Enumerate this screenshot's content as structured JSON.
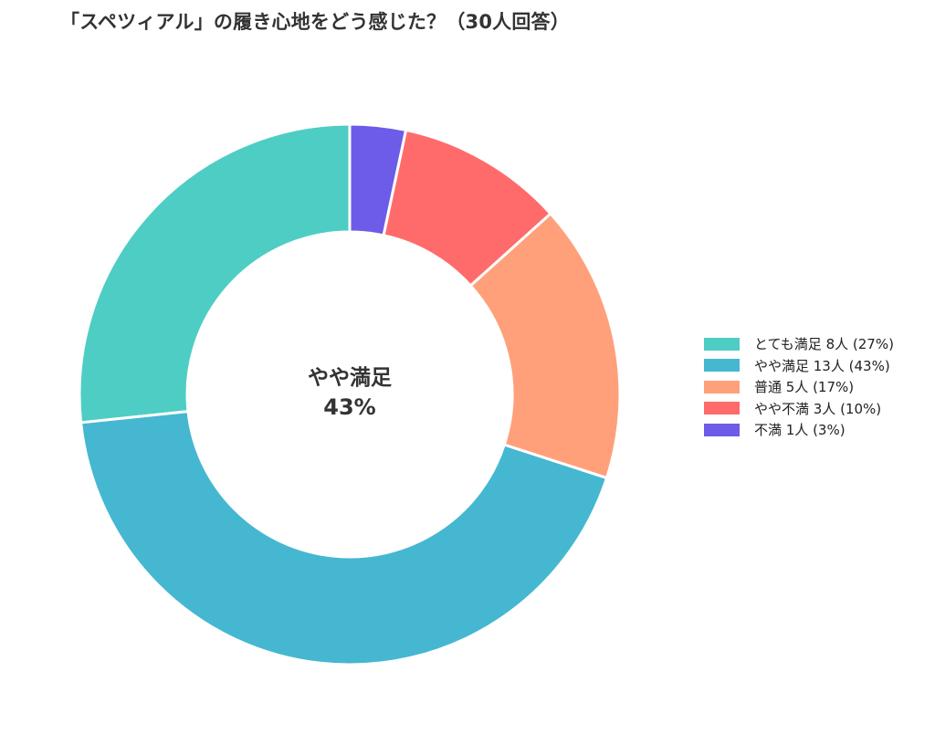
{
  "title": "「スペツィアル」の履き心地をどう感じた？（30人回答）",
  "center": {
    "label": "やや満足",
    "value": "43%"
  },
  "legend": [
    {
      "label": "とても満足 8人 (27%)",
      "color": "#4ECDC4"
    },
    {
      "label": "やや満足 13人 (43%)",
      "color": "#45B7D1"
    },
    {
      "label": "普通 5人 (17%)",
      "color": "#FFA07A"
    },
    {
      "label": "やや不満 3人 (10%)",
      "color": "#FF6B6B"
    },
    {
      "label": "不満 1人 (3%)",
      "color": "#6C5CE7"
    }
  ],
  "chart_data": {
    "type": "pie",
    "subtype": "donut",
    "title": "「スペツィアル」の履き心地をどう感じた？（30人回答）",
    "total_respondents": 30,
    "categories": [
      "とても満足",
      "やや満足",
      "普通",
      "やや不満",
      "不満"
    ],
    "values": [
      8,
      13,
      5,
      3,
      1
    ],
    "percentages": [
      27,
      43,
      17,
      10,
      3
    ],
    "colors": [
      "#4ECDC4",
      "#45B7D1",
      "#FFA07A",
      "#FF6B6B",
      "#6C5CE7"
    ],
    "start_angle": "12 o'clock",
    "direction": "counterclockwise from top: とても満足, やや満足, 普通, やや不満, 不満",
    "center_annotation": "やや満足 43%",
    "legend_position": "right"
  }
}
